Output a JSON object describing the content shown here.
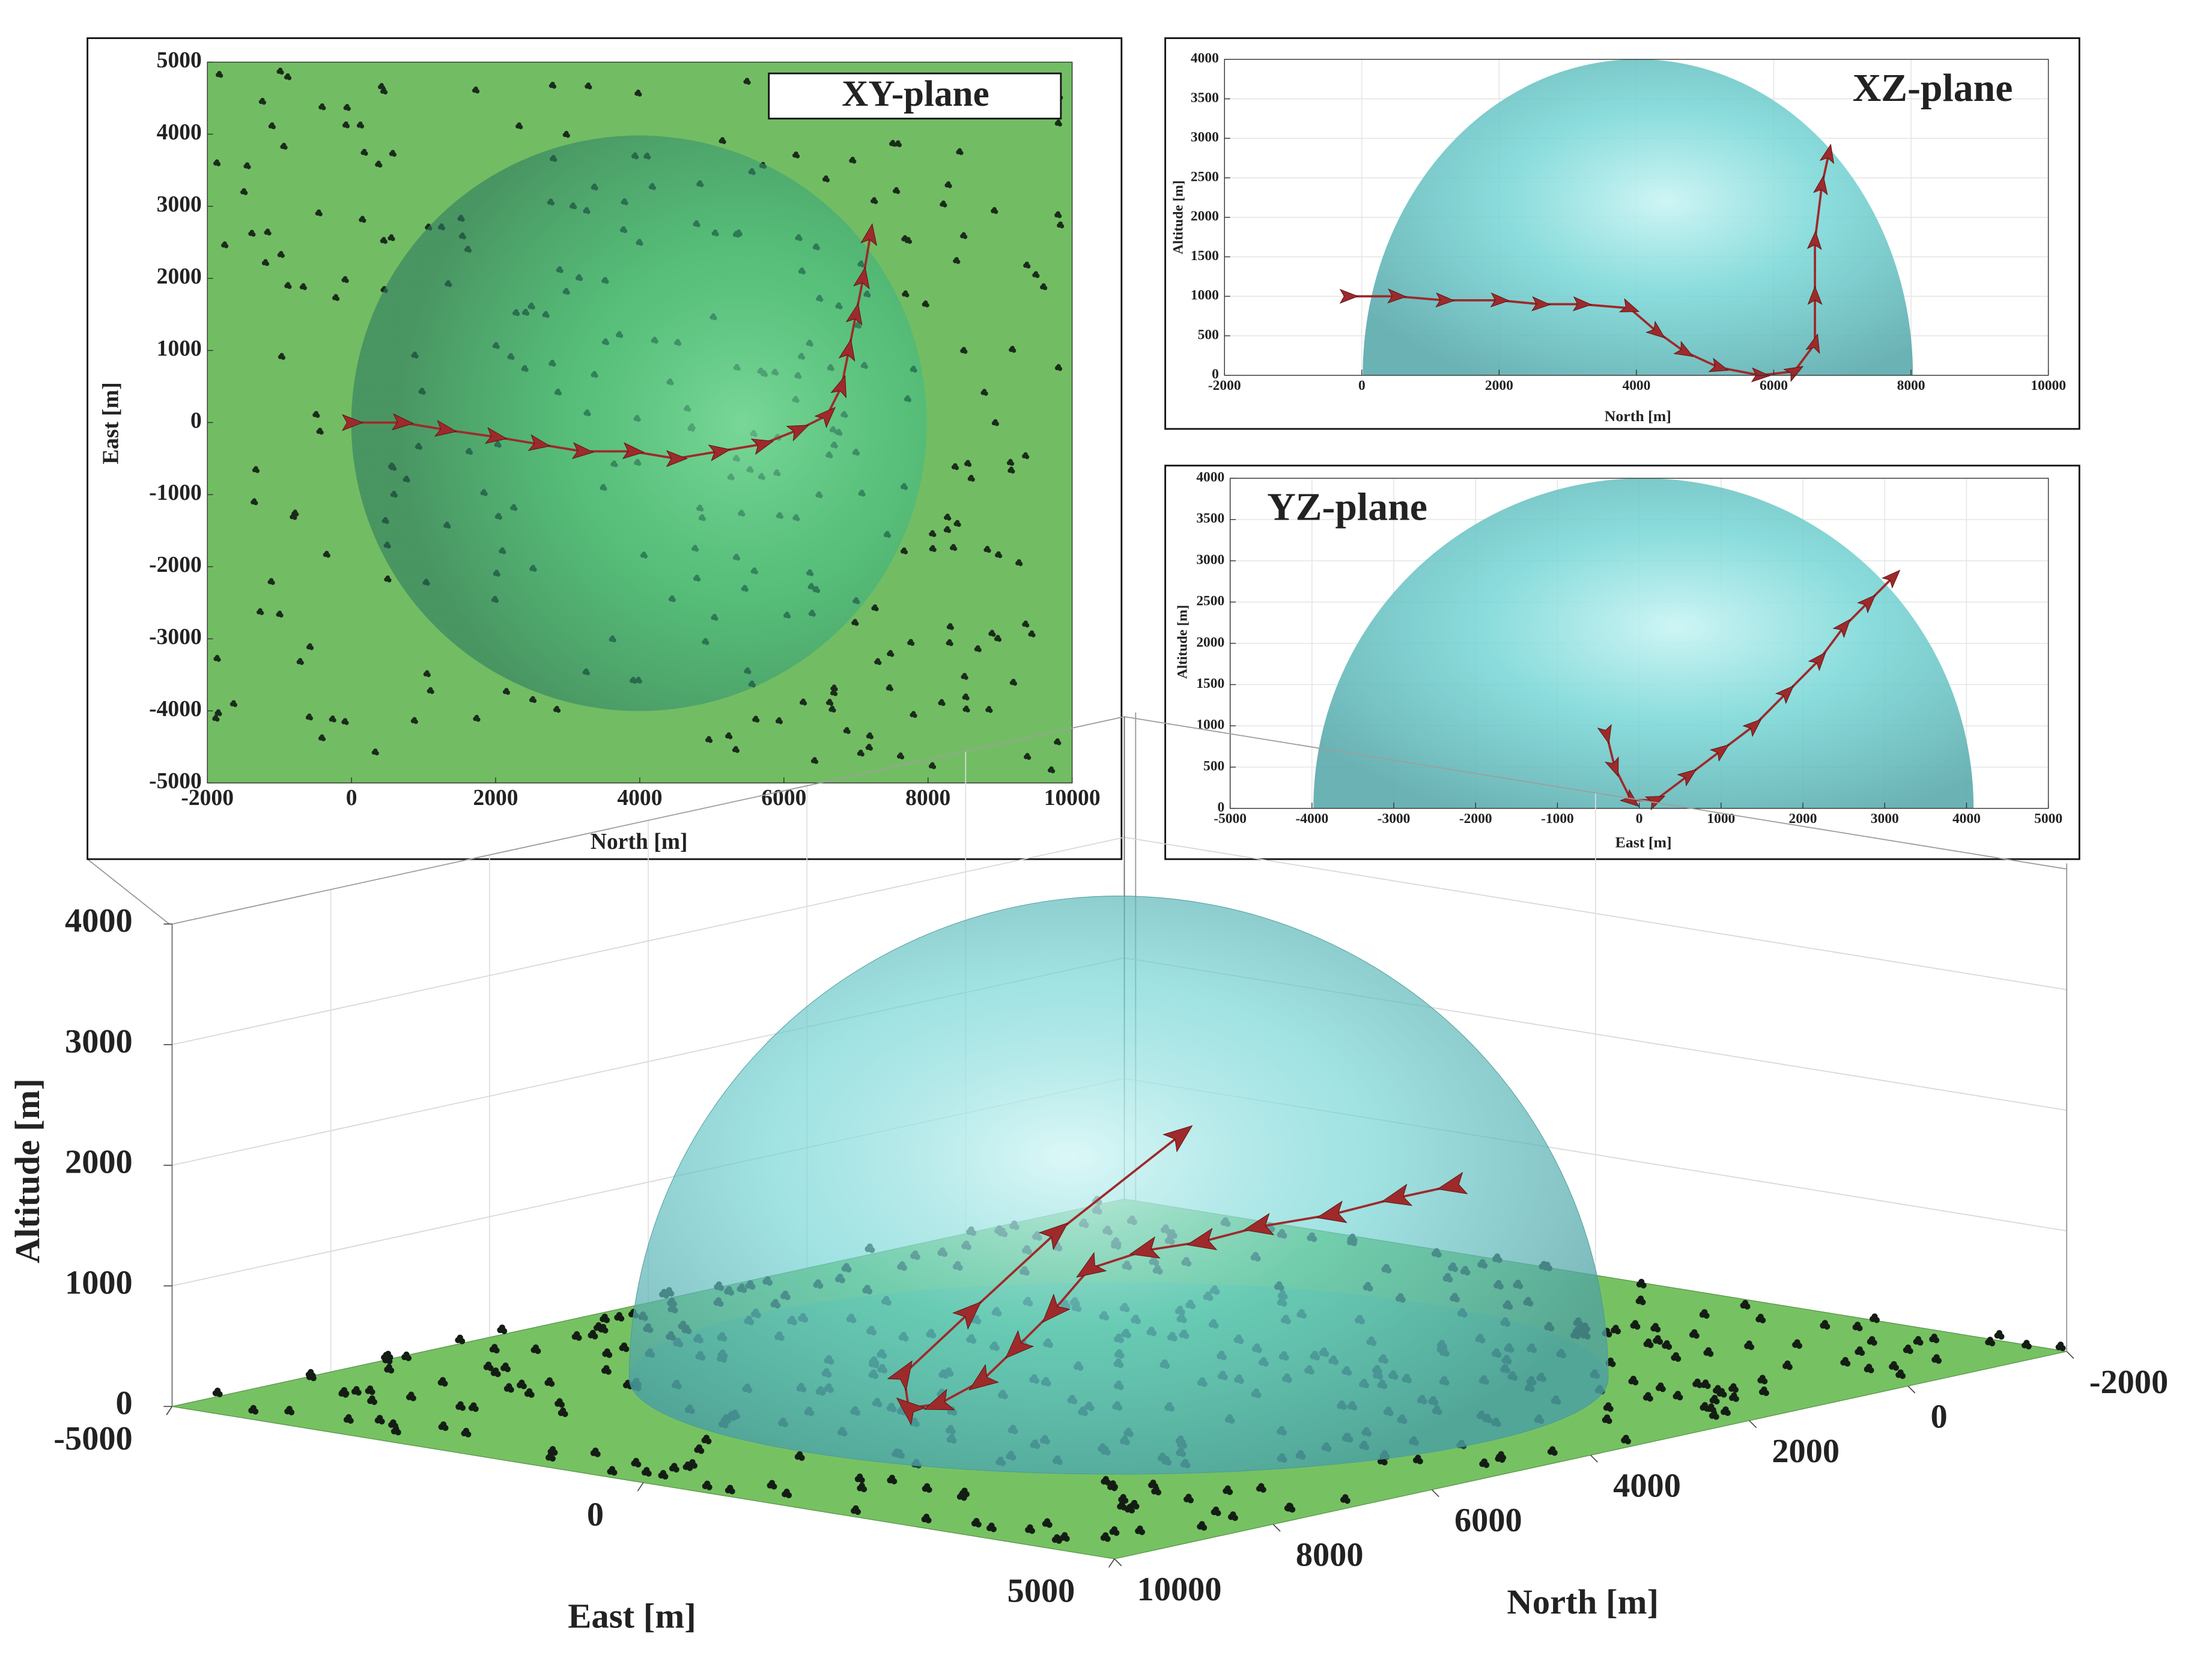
{
  "chart_data": [
    {
      "type": "line",
      "annotation": "XY-plane",
      "xlabel": "North [m]",
      "ylabel": "East [m]",
      "xlim": [
        -2000,
        10000
      ],
      "xticks": [
        -2000,
        0,
        2000,
        4000,
        6000,
        8000,
        10000
      ],
      "ylim": [
        -5000,
        5000
      ],
      "yticks": [
        -5000,
        -4000,
        -3000,
        -2000,
        -1000,
        0,
        1000,
        2000,
        3000,
        4000,
        5000
      ],
      "grid": false,
      "plot_color": "#72bd63",
      "color": "#9e2a2b",
      "x": [
        0,
        700,
        1300,
        2000,
        2600,
        3200,
        3900,
        4500,
        5100,
        5700,
        6200,
        6600,
        6800,
        6900,
        7000,
        7100,
        7200
      ],
      "values": [
        0,
        0,
        -100,
        -200,
        -300,
        -400,
        -400,
        -500,
        -400,
        -300,
        -100,
        100,
        500,
        1000,
        1500,
        2000,
        2600
      ]
    },
    {
      "type": "line",
      "annotation": "XZ-plane",
      "xlabel": "North [m]",
      "ylabel": "Altitude [m]",
      "xlim": [
        -2000,
        10000
      ],
      "xticks": [
        -2000,
        0,
        2000,
        4000,
        6000,
        8000,
        10000
      ],
      "ylim": [
        0,
        4000
      ],
      "yticks": [
        0,
        500,
        1000,
        1500,
        2000,
        2500,
        3000,
        3500,
        4000
      ],
      "grid": true,
      "plot_color": "#ffffff",
      "color": "#9e2a2b",
      "x": [
        -200,
        500,
        1200,
        2000,
        2600,
        3200,
        3900,
        4300,
        4700,
        5200,
        5800,
        6300,
        6600,
        6600,
        6600,
        6700,
        6800
      ],
      "values": [
        1000,
        1000,
        950,
        950,
        900,
        900,
        850,
        550,
        300,
        100,
        0,
        50,
        400,
        1000,
        1700,
        2400,
        2800
      ]
    },
    {
      "type": "line",
      "annotation": "YZ-plane",
      "xlabel": "East [m]",
      "ylabel": "Altitude [m]",
      "xlim": [
        -5000,
        5000
      ],
      "xticks": [
        -5000,
        -4000,
        -3000,
        -2000,
        -1000,
        0,
        1000,
        2000,
        3000,
        4000,
        5000
      ],
      "ylim": [
        0,
        4000
      ],
      "yticks": [
        0,
        500,
        1000,
        1500,
        2000,
        2500,
        3000,
        3500,
        4000
      ],
      "grid": true,
      "plot_color": "#ffffff",
      "color": "#9e2a2b",
      "x": [
        -400,
        -300,
        -100,
        200,
        600,
        1000,
        1400,
        1800,
        2200,
        2500,
        2800,
        3100
      ],
      "values": [
        900,
        500,
        100,
        100,
        400,
        700,
        1000,
        1400,
        1800,
        2200,
        2500,
        2800
      ]
    },
    {
      "type": "line3d",
      "xlabel": "North [m]",
      "ylabel": "East [m]",
      "zlabel": "Altitude [m]",
      "xlim": [
        -2000,
        10000
      ],
      "xticks": [
        -2000,
        0,
        2000,
        4000,
        6000,
        8000,
        10000
      ],
      "ylim": [
        -5000,
        5000
      ],
      "yticks": [
        -5000,
        0,
        5000
      ],
      "zlim": [
        0,
        4000
      ],
      "zticks": [
        0,
        1000,
        2000,
        3000,
        4000
      ],
      "grid": true,
      "ground_color": "#76c262",
      "color": "#9e2a2b",
      "x": [
        -200,
        500,
        1200,
        2000,
        2600,
        3200,
        3900,
        4300,
        4700,
        5200,
        5800,
        6300,
        6600,
        6600,
        6700,
        6800
      ],
      "y": [
        0,
        0,
        -100,
        -200,
        -300,
        -400,
        -400,
        -450,
        -500,
        -450,
        -400,
        -300,
        -100,
        600,
        1600,
        3000
      ],
      "values": [
        1000,
        1000,
        950,
        950,
        900,
        900,
        850,
        550,
        300,
        100,
        0,
        50,
        400,
        1000,
        1800,
        2800
      ]
    }
  ]
}
